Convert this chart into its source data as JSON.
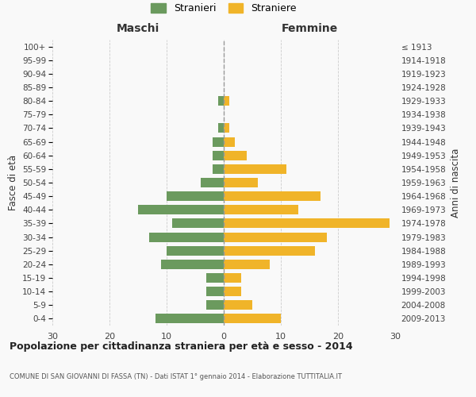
{
  "age_groups": [
    "0-4",
    "5-9",
    "10-14",
    "15-19",
    "20-24",
    "25-29",
    "30-34",
    "35-39",
    "40-44",
    "45-49",
    "50-54",
    "55-59",
    "60-64",
    "65-69",
    "70-74",
    "75-79",
    "80-84",
    "85-89",
    "90-94",
    "95-99",
    "100+"
  ],
  "birth_years": [
    "2009-2013",
    "2004-2008",
    "1999-2003",
    "1994-1998",
    "1989-1993",
    "1984-1988",
    "1979-1983",
    "1974-1978",
    "1969-1973",
    "1964-1968",
    "1959-1963",
    "1954-1958",
    "1949-1953",
    "1944-1948",
    "1939-1943",
    "1934-1938",
    "1929-1933",
    "1924-1928",
    "1919-1923",
    "1914-1918",
    "≤ 1913"
  ],
  "males": [
    12,
    3,
    3,
    3,
    11,
    10,
    13,
    9,
    15,
    10,
    4,
    2,
    2,
    2,
    1,
    0,
    1,
    0,
    0,
    0,
    0
  ],
  "females": [
    10,
    5,
    3,
    3,
    8,
    16,
    18,
    29,
    13,
    17,
    6,
    11,
    4,
    2,
    1,
    0,
    1,
    0,
    0,
    0,
    0
  ],
  "male_color": "#6b9a5e",
  "female_color": "#f0b429",
  "background_color": "#f9f9f9",
  "grid_color": "#cccccc",
  "dashed_line_color": "#999999",
  "title": "Popolazione per cittadinanza straniera per età e sesso - 2014",
  "subtitle": "COMUNE DI SAN GIOVANNI DI FASSA (TN) - Dati ISTAT 1° gennaio 2014 - Elaborazione TUTTITALIA.IT",
  "xlabel_left": "Maschi",
  "xlabel_right": "Femmine",
  "ylabel_left": "Fasce di età",
  "ylabel_right": "Anni di nascita",
  "legend_male": "Stranieri",
  "legend_female": "Straniere",
  "xlim": 30,
  "bar_height": 0.7
}
